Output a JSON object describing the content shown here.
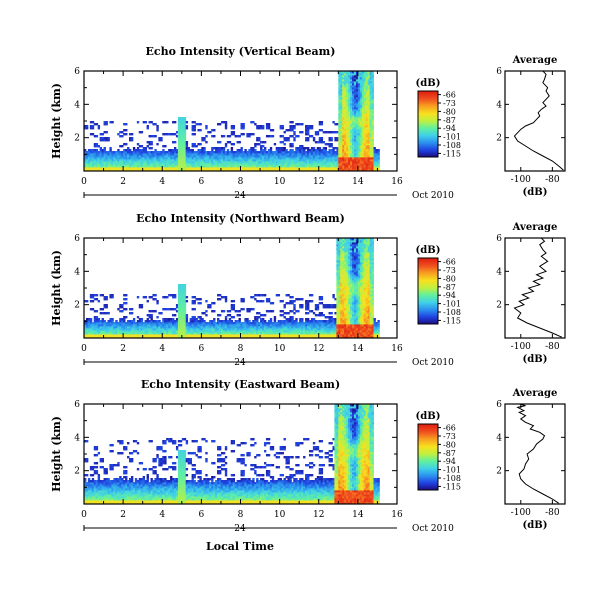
{
  "chart_data": [
    {
      "type": "heatmap",
      "title": "Echo Intensity (Vertical Beam)",
      "ylabel": "Height (km)",
      "xlabel": "",
      "x_ticks": [
        "0",
        "2",
        "4",
        "6",
        "8",
        "10",
        "12",
        "14",
        "16"
      ],
      "y_ticks": [
        "2",
        "4",
        "6"
      ],
      "xlim": [
        0,
        16
      ],
      "ylim": [
        0,
        6
      ],
      "date_day": "24",
      "date_month_year": "Oct 2010",
      "colorbar": {
        "unit": "(dB)",
        "tick_labels": [
          "-66",
          "-73",
          "-80",
          "-87",
          "-94",
          "-101",
          "-108",
          "-115"
        ],
        "range": [
          -118,
          -63
        ],
        "colors": [
          "#1e0a78",
          "#2040e0",
          "#2a90f0",
          "#40d0e8",
          "#60f0a0",
          "#c0f040",
          "#f8e020",
          "#f8a020",
          "#f05020",
          "#e02010"
        ]
      },
      "field": {
        "base_echo_top_km": 1.3,
        "clutter_top_km": 3.0,
        "spike_time_h": 5.0,
        "rain_start_h": 13.0,
        "rain_end_h": 14.8,
        "rain_top_km": 6.0,
        "bright_band_km": 3.0
      },
      "profile": {
        "title": "Average",
        "xlabel": "(dB)",
        "x_ticks": [
          "-100",
          "-80"
        ],
        "y_ticks": [
          "2",
          "4",
          "6"
        ],
        "xlim": [
          -110,
          -72
        ],
        "ylim": [
          0,
          6
        ],
        "x": [
          -73,
          -76,
          -80,
          -86,
          -92,
          -97,
          -102,
          -104,
          -102,
          -100,
          -97,
          -92,
          -90,
          -88,
          -89,
          -87,
          -84,
          -86,
          -84,
          -82,
          -84,
          -83,
          -86,
          -85,
          -84,
          -86
        ],
        "y": [
          0.05,
          0.3,
          0.6,
          0.9,
          1.2,
          1.5,
          1.8,
          2.1,
          2.3,
          2.5,
          2.7,
          2.9,
          3.1,
          3.3,
          3.5,
          3.7,
          3.9,
          4.1,
          4.3,
          4.5,
          4.8,
          5.0,
          5.3,
          5.5,
          5.8,
          6.0
        ]
      }
    },
    {
      "type": "heatmap",
      "title": "Echo Intensity (Northward Beam)",
      "ylabel": "Height (km)",
      "xlabel": "",
      "x_ticks": [
        "0",
        "2",
        "4",
        "6",
        "8",
        "10",
        "12",
        "14",
        "16"
      ],
      "y_ticks": [
        "2",
        "4",
        "6"
      ],
      "xlim": [
        0,
        16
      ],
      "ylim": [
        0,
        6
      ],
      "date_day": "24",
      "date_month_year": "Oct 2010",
      "colorbar": {
        "unit": "(dB)",
        "tick_labels": [
          "-66",
          "-73",
          "-80",
          "-87",
          "-94",
          "-101",
          "-108",
          "-115"
        ],
        "range": [
          -118,
          -63
        ],
        "colors": [
          "#1e0a78",
          "#2040e0",
          "#2a90f0",
          "#40d0e8",
          "#60f0a0",
          "#c0f040",
          "#f8e020",
          "#f8a020",
          "#f05020",
          "#e02010"
        ]
      },
      "field": {
        "base_echo_top_km": 1.1,
        "clutter_top_km": 2.6,
        "spike_time_h": 5.0,
        "rain_start_h": 12.9,
        "rain_end_h": 14.8,
        "rain_top_km": 6.0,
        "bright_band_km": 3.0
      },
      "profile": {
        "title": "Average",
        "xlabel": "(dB)",
        "x_ticks": [
          "-100",
          "-80"
        ],
        "y_ticks": [
          "2",
          "4",
          "6"
        ],
        "xlim": [
          -110,
          -72
        ],
        "ylim": [
          0,
          6
        ],
        "x": [
          -74,
          -80,
          -88,
          -96,
          -102,
          -100,
          -104,
          -98,
          -101,
          -95,
          -99,
          -92,
          -95,
          -88,
          -92,
          -86,
          -90,
          -84,
          -88,
          -83,
          -87,
          -84,
          -86,
          -88,
          -85,
          -87
        ],
        "y": [
          0.05,
          0.3,
          0.6,
          0.9,
          1.2,
          1.5,
          1.8,
          2.0,
          2.2,
          2.4,
          2.6,
          2.8,
          3.0,
          3.2,
          3.4,
          3.6,
          3.8,
          4.0,
          4.3,
          4.6,
          4.9,
          5.1,
          5.3,
          5.6,
          5.8,
          6.0
        ]
      }
    },
    {
      "type": "heatmap",
      "title": "Echo Intensity (Eastward Beam)",
      "ylabel": "Height (km)",
      "xlabel": "Local Time",
      "x_ticks": [
        "0",
        "2",
        "4",
        "6",
        "8",
        "10",
        "12",
        "14",
        "16"
      ],
      "y_ticks": [
        "2",
        "4",
        "6"
      ],
      "xlim": [
        0,
        16
      ],
      "ylim": [
        0,
        6
      ],
      "date_day": "24",
      "date_month_year": "Oct 2010",
      "colorbar": {
        "unit": "(dB)",
        "tick_labels": [
          "-66",
          "-73",
          "-80",
          "-87",
          "-94",
          "-101",
          "-108",
          "-115"
        ],
        "range": [
          -118,
          -63
        ],
        "colors": [
          "#1e0a78",
          "#2040e0",
          "#2a90f0",
          "#40d0e8",
          "#60f0a0",
          "#c0f040",
          "#f8e020",
          "#f8a020",
          "#f05020",
          "#e02010"
        ]
      },
      "field": {
        "base_echo_top_km": 1.5,
        "clutter_top_km": 4.0,
        "spike_time_h": 5.0,
        "rain_start_h": 12.8,
        "rain_end_h": 14.8,
        "rain_top_km": 6.0,
        "bright_band_km": 3.2
      },
      "profile": {
        "title": "Average",
        "xlabel": "(dB)",
        "x_ticks": [
          "-100",
          "-80"
        ],
        "y_ticks": [
          "2",
          "4",
          "6"
        ],
        "xlim": [
          -110,
          -72
        ],
        "ylim": [
          0,
          6
        ],
        "x": [
          -76,
          -80,
          -86,
          -92,
          -97,
          -100,
          -101,
          -98,
          -97,
          -95,
          -96,
          -92,
          -90,
          -86,
          -85,
          -88,
          -94,
          -92,
          -97,
          -100,
          -97,
          -101,
          -98,
          -102,
          -97,
          -101
        ],
        "y": [
          0.05,
          0.3,
          0.6,
          0.9,
          1.2,
          1.5,
          1.8,
          2.1,
          2.4,
          2.7,
          3.0,
          3.3,
          3.6,
          3.9,
          4.1,
          4.3,
          4.5,
          4.7,
          4.9,
          5.1,
          5.3,
          5.5,
          5.6,
          5.8,
          5.9,
          6.0
        ]
      }
    }
  ]
}
